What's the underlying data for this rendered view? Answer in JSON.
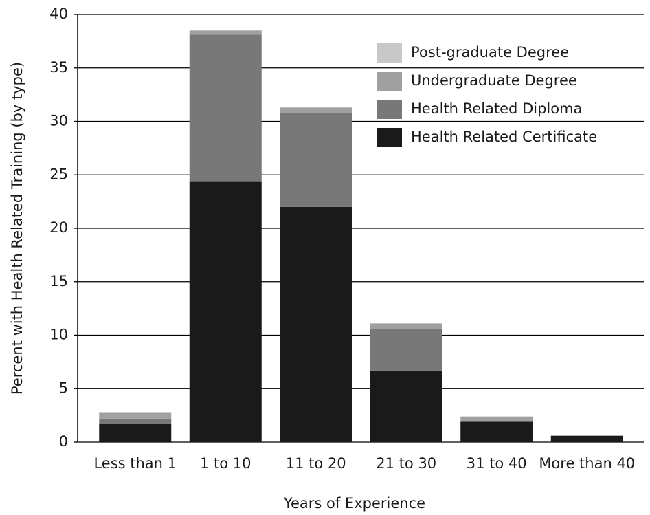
{
  "chart_data": {
    "type": "stacked_bar",
    "x_label": "Years of Experience",
    "y_label": "Percent with Health Related Training (by type)",
    "categories": [
      "Less than 1",
      "1 to 10",
      "11 to 20",
      "21 to 30",
      "31 to 40",
      "More than 40"
    ],
    "series": [
      {
        "name": "Health Related Certificate",
        "color": "#1a1a1a",
        "values": [
          1.7,
          24.4,
          22.0,
          6.7,
          1.9,
          0.6
        ]
      },
      {
        "name": "Health Related Diploma",
        "color": "#787878",
        "values": [
          0.5,
          13.7,
          8.8,
          3.9,
          0,
          0
        ]
      },
      {
        "name": "Undergraduate Degree",
        "color": "#a0a0a0",
        "values": [
          0.6,
          0.4,
          0.5,
          0.5,
          0.5,
          0
        ]
      },
      {
        "name": "Post-graduate Degree",
        "color": "#c8c8c8",
        "values": [
          0,
          0,
          0,
          0,
          0,
          0
        ]
      }
    ],
    "ylim": [
      0,
      40
    ],
    "yticks": [
      0,
      5,
      10,
      15,
      20,
      25,
      30,
      35,
      40
    ],
    "grid": true
  }
}
